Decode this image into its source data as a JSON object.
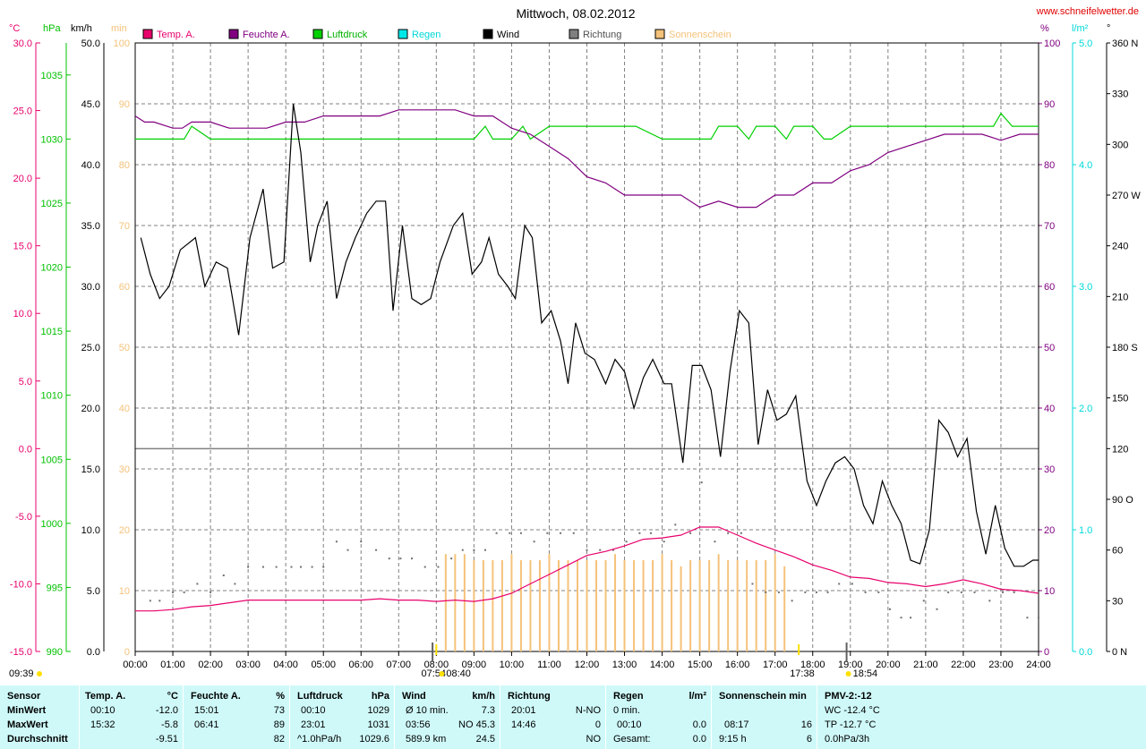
{
  "chart_data": {
    "type": "line",
    "title": "Mittwoch, 08.02.2012",
    "source": "www.schneifelwetter.de",
    "axes": {
      "temp": {
        "unit": "°C",
        "ticks": [
          "30.0",
          "25.0",
          "20.0",
          "15.0",
          "10.0",
          "5.0",
          "0.0",
          "-5.0",
          "-10.0",
          "-15.0"
        ],
        "range": [
          -15,
          30
        ],
        "color": "#e8006c"
      },
      "pressure": {
        "unit": "hPa",
        "ticks": [
          "1035",
          "1030",
          "1025",
          "1020",
          "1015",
          "1010",
          "1005",
          "1000",
          "995",
          "990"
        ],
        "range": [
          990,
          1037.5
        ],
        "color": "#00c000"
      },
      "wind": {
        "unit": "km/h",
        "ticks": [
          "50.0",
          "45.0",
          "40.0",
          "35.0",
          "30.0",
          "25.0",
          "20.0",
          "15.0",
          "10.0",
          "5.0",
          "0.0"
        ],
        "range": [
          0,
          50
        ],
        "color": "#000000"
      },
      "sunshine": {
        "unit": "min",
        "ticks": [
          "100",
          "90",
          "80",
          "70",
          "60",
          "50",
          "40",
          "30",
          "20",
          "10",
          "0"
        ],
        "range": [
          0,
          100
        ],
        "color": "#f5c27a"
      },
      "humidity": {
        "unit": "%",
        "ticks": [
          "100",
          "90",
          "80",
          "70",
          "60",
          "50",
          "40",
          "30",
          "20",
          "10",
          "0"
        ],
        "range": [
          0,
          100
        ],
        "color": "#800080"
      },
      "rain": {
        "unit": "l/m²",
        "ticks": [
          "5.0",
          "4.0",
          "3.0",
          "2.0",
          "1.0",
          "0.0"
        ],
        "range": [
          0,
          5
        ],
        "color": "#00d8d8"
      },
      "direction": {
        "unit": "°",
        "ticks": [
          "360 N",
          "330",
          "300",
          "270 W",
          "240",
          "210",
          "180 S",
          "150",
          "120",
          "90 O",
          "60",
          "30",
          "0 N"
        ],
        "range": [
          0,
          360
        ],
        "color": "#000000"
      }
    },
    "x_ticks": [
      "00:00",
      "01:00",
      "02:00",
      "03:00",
      "04:00",
      "05:00",
      "06:00",
      "07:00",
      "08:00",
      "09:00",
      "10:00",
      "11:00",
      "12:00",
      "13:00",
      "14:00",
      "15:00",
      "16:00",
      "17:00",
      "18:00",
      "19:00",
      "20:00",
      "21:00",
      "22:00",
      "23:00",
      "24:00"
    ],
    "legend": [
      {
        "label": "Temp. A.",
        "color": "#e8006c"
      },
      {
        "label": "Feuchte A.",
        "color": "#800080"
      },
      {
        "label": "Luftdruck",
        "color": "#00d000"
      },
      {
        "label": "Regen",
        "color": "#00e8e8"
      },
      {
        "label": "Wind",
        "color": "#000000"
      },
      {
        "label": "Richtung",
        "color": "#808080"
      },
      {
        "label": "Sonnenschein",
        "color": "#f5c27a"
      }
    ],
    "sun_labels": {
      "left_time": "09:39",
      "sunrise": "07:54",
      "sunrise2": "08:40",
      "sunset": "17:38",
      "sunset2": "18:54"
    },
    "temperature": {
      "x": [
        0,
        0.5,
        1,
        1.5,
        2,
        2.5,
        3,
        3.5,
        4,
        4.5,
        5,
        5.5,
        6,
        6.5,
        7,
        7.5,
        8,
        8.5,
        9,
        9.5,
        10,
        10.5,
        11,
        11.5,
        12,
        12.5,
        13,
        13.5,
        14,
        14.5,
        15,
        15.5,
        16,
        16.5,
        17,
        17.5,
        18,
        18.5,
        19,
        19.5,
        20,
        20.5,
        21,
        21.5,
        22,
        22.5,
        23,
        23.5,
        24
      ],
      "y": [
        -12.0,
        -12.0,
        -11.9,
        -11.7,
        -11.6,
        -11.4,
        -11.2,
        -11.2,
        -11.2,
        -11.2,
        -11.2,
        -11.2,
        -11.2,
        -11.1,
        -11.2,
        -11.2,
        -11.3,
        -11.2,
        -11.3,
        -11.1,
        -10.7,
        -10.0,
        -9.3,
        -8.6,
        -7.9,
        -7.6,
        -7.2,
        -6.7,
        -6.6,
        -6.4,
        -5.8,
        -5.8,
        -6.4,
        -7.0,
        -7.5,
        -8.0,
        -8.6,
        -9.0,
        -9.5,
        -9.6,
        -9.9,
        -10.0,
        -10.2,
        -10.0,
        -9.7,
        -10.0,
        -10.4,
        -10.5,
        -10.7
      ]
    },
    "humidity": {
      "x": [
        0,
        0.25,
        0.5,
        1,
        1.25,
        1.5,
        2,
        2.5,
        3,
        3.5,
        4,
        4.5,
        5,
        5.5,
        6,
        6.5,
        7,
        7.5,
        8,
        8.5,
        9,
        9.5,
        10,
        10.5,
        11,
        11.5,
        12,
        12.5,
        13,
        13.5,
        14,
        14.5,
        15,
        15.5,
        16,
        16.5,
        17,
        17.5,
        18,
        18.5,
        19,
        19.5,
        20,
        20.5,
        21,
        21.5,
        22,
        22.5,
        23,
        23.5,
        24
      ],
      "y": [
        88,
        87,
        87,
        86,
        86,
        87,
        87,
        86,
        86,
        86,
        87,
        87,
        88,
        88,
        88,
        88,
        89,
        89,
        89,
        89,
        88,
        88,
        86,
        85,
        83,
        81,
        78,
        77,
        75,
        75,
        75,
        75,
        73,
        74,
        73,
        73,
        75,
        75,
        77,
        77,
        79,
        80,
        82,
        83,
        84,
        85,
        85,
        85,
        84,
        85,
        85
      ]
    },
    "pressure": {
      "x": [
        0,
        1,
        1.3,
        1.5,
        2,
        3,
        4,
        5,
        6,
        7,
        8,
        9,
        9.3,
        9.5,
        10,
        10.3,
        10.5,
        11,
        11.3,
        11.5,
        12,
        13,
        13.3,
        14,
        15,
        15.3,
        15.5,
        16,
        16.3,
        16.5,
        17,
        17.3,
        17.5,
        18,
        18.3,
        18.5,
        19,
        20,
        21,
        22,
        22.8,
        23,
        23.3,
        24
      ],
      "y": [
        1030,
        1030,
        1030,
        1031,
        1030,
        1030,
        1030,
        1030,
        1030,
        1030,
        1030,
        1030,
        1031,
        1030,
        1030,
        1031,
        1030,
        1031,
        1031,
        1031,
        1031,
        1031,
        1031,
        1030,
        1030,
        1030,
        1031,
        1031,
        1030,
        1031,
        1031,
        1030,
        1031,
        1031,
        1030,
        1030,
        1031,
        1031,
        1031,
        1031,
        1031,
        1032,
        1031,
        1031
      ]
    },
    "wind": {
      "x": [
        0.15,
        0.4,
        0.65,
        0.9,
        1.2,
        1.6,
        1.85,
        2.15,
        2.45,
        2.75,
        3.05,
        3.4,
        3.65,
        3.95,
        4.2,
        4.4,
        4.65,
        4.85,
        5.1,
        5.35,
        5.6,
        5.85,
        6.15,
        6.4,
        6.65,
        6.85,
        7.1,
        7.35,
        7.6,
        7.85,
        8.1,
        8.45,
        8.7,
        8.95,
        9.2,
        9.4,
        9.65,
        9.9,
        10.1,
        10.35,
        10.55,
        10.8,
        11.05,
        11.3,
        11.5,
        11.7,
        11.95,
        12.2,
        12.5,
        12.75,
        13.0,
        13.25,
        13.5,
        13.75,
        14.05,
        14.25,
        14.55,
        14.8,
        15.05,
        15.3,
        15.55,
        15.8,
        16.05,
        16.3,
        16.55,
        16.8,
        17.05,
        17.3,
        17.55,
        17.85,
        18.1,
        18.35,
        18.6,
        18.85,
        19.1,
        19.35,
        19.6,
        19.85,
        20.1,
        20.35,
        20.6,
        20.85,
        21.1,
        21.35,
        21.6,
        21.85,
        22.1,
        22.35,
        22.6,
        22.85,
        23.1,
        23.35,
        23.6,
        23.85,
        24
      ],
      "y": [
        34,
        31,
        29,
        30,
        33,
        34,
        30,
        32,
        31.5,
        26,
        34,
        38,
        31.5,
        32,
        45,
        41,
        32,
        35,
        37,
        29,
        32,
        34,
        36,
        37,
        37,
        28,
        35,
        29,
        28.5,
        29,
        32,
        35,
        36,
        31,
        32,
        34,
        31,
        30,
        29,
        35,
        34,
        27,
        28,
        25.5,
        22,
        27,
        24.5,
        24,
        22,
        24,
        23,
        20,
        22.5,
        24,
        22,
        22,
        15.5,
        23.5,
        23.5,
        21.5,
        16,
        23,
        28,
        27,
        17,
        21.5,
        19,
        19.5,
        21,
        14,
        12,
        14,
        15.5,
        16,
        15,
        12,
        10.5,
        14,
        12,
        10.5,
        7.5,
        7.2,
        10,
        19,
        18,
        16,
        17.5,
        11.5,
        8,
        12,
        8.5,
        7,
        7,
        7.5,
        7.5
      ]
    },
    "sunshine": {
      "x": [
        8.25,
        8.5,
        8.75,
        9.0,
        9.25,
        9.5,
        9.75,
        10.0,
        10.25,
        10.5,
        10.75,
        11.0,
        11.25,
        11.5,
        11.75,
        12.0,
        12.25,
        12.5,
        12.75,
        13.0,
        13.25,
        13.5,
        13.75,
        14.0,
        14.25,
        14.5,
        14.75,
        15.0,
        15.25,
        15.5,
        15.75,
        16.0,
        16.25,
        16.5,
        16.75,
        17.0,
        17.25
      ],
      "y": [
        16,
        16,
        16,
        15,
        15,
        15,
        15,
        16,
        15,
        15,
        15,
        16,
        15,
        15,
        15,
        15,
        15,
        15,
        16,
        15,
        15,
        15,
        15,
        16,
        15,
        14,
        15,
        15,
        15,
        16,
        15,
        15,
        15,
        15,
        15,
        16,
        14
      ]
    },
    "direction": {
      "x": [
        0.4,
        0.65,
        1.0,
        1.3,
        1.65,
        2.0,
        2.35,
        2.65,
        3.0,
        3.4,
        3.75,
        4.15,
        4.4,
        4.7,
        5.0,
        5.35,
        5.65,
        6.0,
        6.4,
        6.75,
        7.05,
        7.35,
        7.7,
        8.05,
        8.4,
        8.7,
        9.0,
        9.3,
        9.6,
        9.95,
        10.25,
        10.6,
        10.95,
        11.3,
        11.65,
        12.0,
        12.35,
        12.7,
        13.05,
        13.4,
        13.7,
        14.05,
        14.35,
        14.75,
        15.05,
        15.4,
        15.75,
        16.1,
        16.4,
        16.75,
        17.1,
        17.45,
        17.8,
        18.1,
        18.4,
        18.7,
        19.05,
        19.4,
        19.75,
        20.05,
        20.35,
        20.6,
        20.95,
        21.3,
        21.6,
        21.95,
        22.3,
        22.7,
        23.05,
        23.35,
        23.7,
        24.0
      ],
      "y": [
        30,
        30,
        35,
        35,
        40,
        35,
        45,
        40,
        50,
        50,
        50,
        50,
        50,
        50,
        50,
        65,
        60,
        65,
        60,
        55,
        55,
        55,
        50,
        50,
        55,
        60,
        60,
        60,
        70,
        70,
        70,
        65,
        70,
        70,
        70,
        60,
        60,
        60,
        65,
        70,
        70,
        65,
        75,
        70,
        100,
        65,
        70,
        70,
        40,
        35,
        35,
        30,
        35,
        35,
        35,
        40,
        40,
        35,
        35,
        25,
        20,
        20,
        30,
        25,
        35,
        35,
        35,
        30,
        35,
        35,
        20,
        20
      ]
    }
  },
  "stats": {
    "sensor": {
      "header": "Sensor",
      "rows": [
        "MinWert",
        "MaxWert",
        "Durchschnitt"
      ]
    },
    "temp": {
      "header": "Temp. A.",
      "unit": "°C",
      "rows": [
        [
          "00:10",
          "-12.0"
        ],
        [
          "15:32",
          "-5.8"
        ],
        [
          "",
          "-9.51"
        ]
      ]
    },
    "humidity": {
      "header": "Feuchte A.",
      "unit": "%",
      "rows": [
        [
          "15:01",
          "73"
        ],
        [
          "06:41",
          "89"
        ],
        [
          "",
          "82"
        ]
      ]
    },
    "pressure": {
      "header": "Luftdruck",
      "unit": "hPa",
      "rows": [
        [
          "00:10",
          "1029"
        ],
        [
          "23:01",
          "1031"
        ],
        [
          "^1.0hPa/h",
          "1029.6"
        ]
      ]
    },
    "wind": {
      "header": "Wind",
      "unit": "km/h",
      "rows": [
        [
          "Ø 10 min.",
          "7.3"
        ],
        [
          "03:56",
          "NO 45.3"
        ],
        [
          "589.9 km",
          "24.5"
        ]
      ]
    },
    "direction": {
      "header": "Richtung",
      "rows": [
        [
          "20:01",
          "N-NO"
        ],
        [
          "14:46",
          "0"
        ],
        [
          "",
          "NO"
        ]
      ]
    },
    "rain": {
      "header": "Regen",
      "unit": "l/m²",
      "rows": [
        [
          "0 min.",
          ""
        ],
        [
          "00:10",
          "0.0"
        ],
        [
          "Gesamt:",
          "0.0"
        ]
      ]
    },
    "sunshine": {
      "header": "Sonnenschein min",
      "rows": [
        [
          "08:17",
          "16"
        ],
        [
          "9:15 h",
          "6"
        ]
      ]
    },
    "pmv": {
      "header": "PMV-2:-12",
      "rows": [
        "WC -12.4 °C",
        "TP -12.7 °C",
        "0.0hPa/3h"
      ]
    }
  }
}
